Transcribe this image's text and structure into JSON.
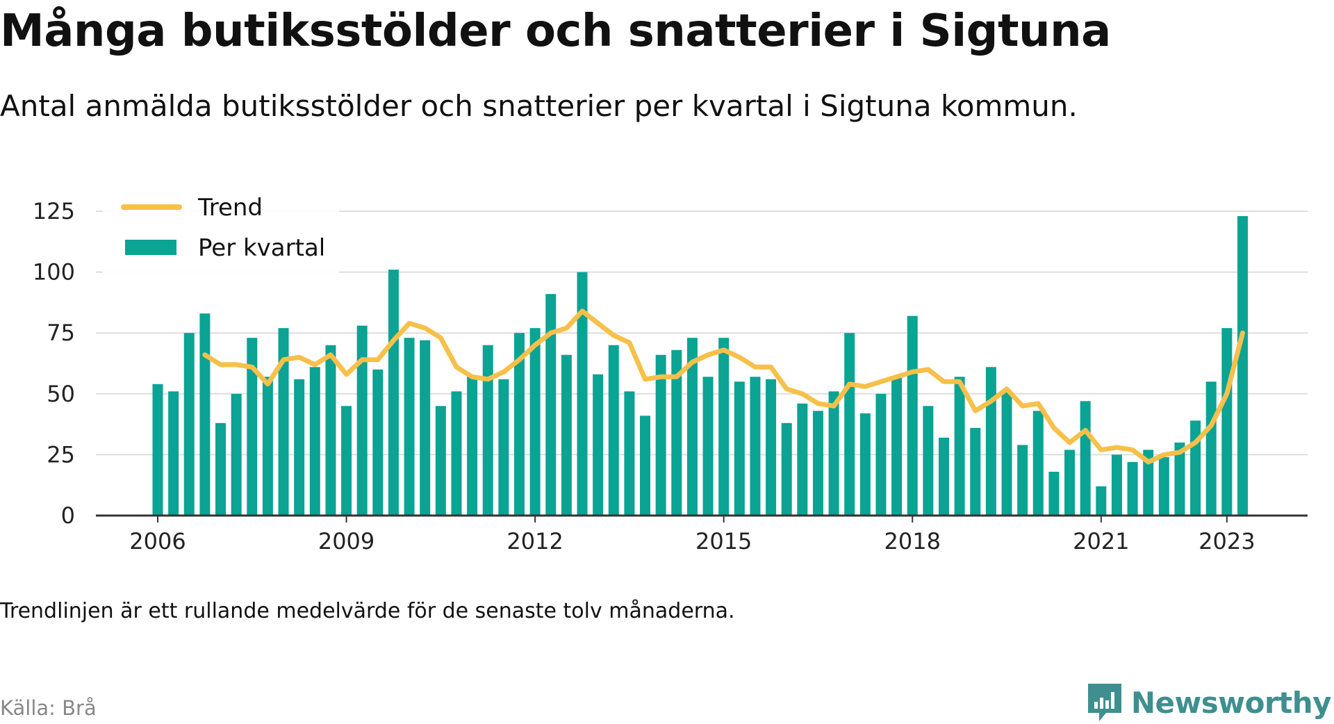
{
  "header": {
    "title": "Många butiksstölder och snatterier i Sigtuna",
    "subtitle": "Antal anmälda butiksstölder och snatterier per kvartal i Sigtuna kommun."
  },
  "footer": {
    "note": "Trendlinjen är ett rullande medelvärde för de senaste tolv månaderna.",
    "source": "Källa: Brå",
    "brand": "Newsworthy"
  },
  "colors": {
    "bars": "#0aa394",
    "trend": "#f7c04a",
    "grid": "#dddddd",
    "axis": "#333333",
    "brand": "#3f8f8f"
  },
  "chart_data": {
    "type": "bar",
    "categories": [
      "2006 Q1",
      "2006 Q2",
      "2006 Q3",
      "2006 Q4",
      "2007 Q1",
      "2007 Q2",
      "2007 Q3",
      "2007 Q4",
      "2008 Q1",
      "2008 Q2",
      "2008 Q3",
      "2008 Q4",
      "2009 Q1",
      "2009 Q2",
      "2009 Q3",
      "2009 Q4",
      "2010 Q1",
      "2010 Q2",
      "2010 Q3",
      "2010 Q4",
      "2011 Q1",
      "2011 Q2",
      "2011 Q3",
      "2011 Q4",
      "2012 Q1",
      "2012 Q2",
      "2012 Q3",
      "2012 Q4",
      "2013 Q1",
      "2013 Q2",
      "2013 Q3",
      "2013 Q4",
      "2014 Q1",
      "2014 Q2",
      "2014 Q3",
      "2014 Q4",
      "2015 Q1",
      "2015 Q2",
      "2015 Q3",
      "2015 Q4",
      "2016 Q1",
      "2016 Q2",
      "2016 Q3",
      "2016 Q4",
      "2017 Q1",
      "2017 Q2",
      "2017 Q3",
      "2017 Q4",
      "2018 Q1",
      "2018 Q2",
      "2018 Q3",
      "2018 Q4",
      "2019 Q1",
      "2019 Q2",
      "2019 Q3",
      "2019 Q4",
      "2020 Q1",
      "2020 Q2",
      "2020 Q3",
      "2020 Q4",
      "2021 Q1",
      "2021 Q2",
      "2021 Q3",
      "2021 Q4",
      "2022 Q1",
      "2022 Q2",
      "2022 Q3",
      "2022 Q4",
      "2023 Q1",
      "2023 Q2",
      "2023 Q3"
    ],
    "series": [
      {
        "name": "Per kvartal",
        "type": "bar",
        "values": [
          54,
          51,
          75,
          83,
          38,
          50,
          73,
          57,
          77,
          56,
          61,
          70,
          45,
          78,
          60,
          101,
          73,
          72,
          45,
          51,
          57,
          70,
          56,
          75,
          77,
          91,
          66,
          100,
          58,
          70,
          51,
          41,
          66,
          68,
          73,
          57,
          73,
          55,
          57,
          56,
          38,
          46,
          43,
          51,
          75,
          42,
          50,
          57,
          82,
          45,
          32,
          57,
          36,
          61,
          51,
          29,
          43,
          18,
          27,
          47,
          12,
          25,
          22,
          27,
          24,
          30,
          39,
          55,
          77,
          123,
          null
        ]
      },
      {
        "name": "Trend",
        "type": "line",
        "values": [
          null,
          null,
          null,
          66,
          62,
          62,
          61,
          54,
          64,
          65,
          62,
          66,
          58,
          64,
          64,
          72,
          79,
          77,
          73,
          61,
          57,
          56,
          59,
          64,
          70,
          75,
          77,
          84,
          79,
          74,
          71,
          56,
          57,
          57,
          63,
          66,
          68,
          65,
          61,
          61,
          52,
          50,
          46,
          45,
          54,
          53,
          55,
          57,
          59,
          60,
          55,
          55,
          43,
          47,
          52,
          45,
          46,
          36,
          30,
          35,
          27,
          28,
          27,
          22,
          25,
          26,
          30,
          37,
          50,
          75,
          null
        ]
      }
    ],
    "x_start": "2006 Q1",
    "x_tick_labels": [
      "2006",
      "2009",
      "2012",
      "2015",
      "2018",
      "2021",
      "2023"
    ],
    "y_tick_labels": [
      "0",
      "25",
      "50",
      "75",
      "100",
      "125"
    ],
    "ylim": [
      0,
      130
    ],
    "xlabel": "",
    "ylabel": "",
    "grid": "horizontal",
    "legend": {
      "position": "top-left",
      "items": [
        "Trend",
        "Per kvartal"
      ]
    }
  }
}
